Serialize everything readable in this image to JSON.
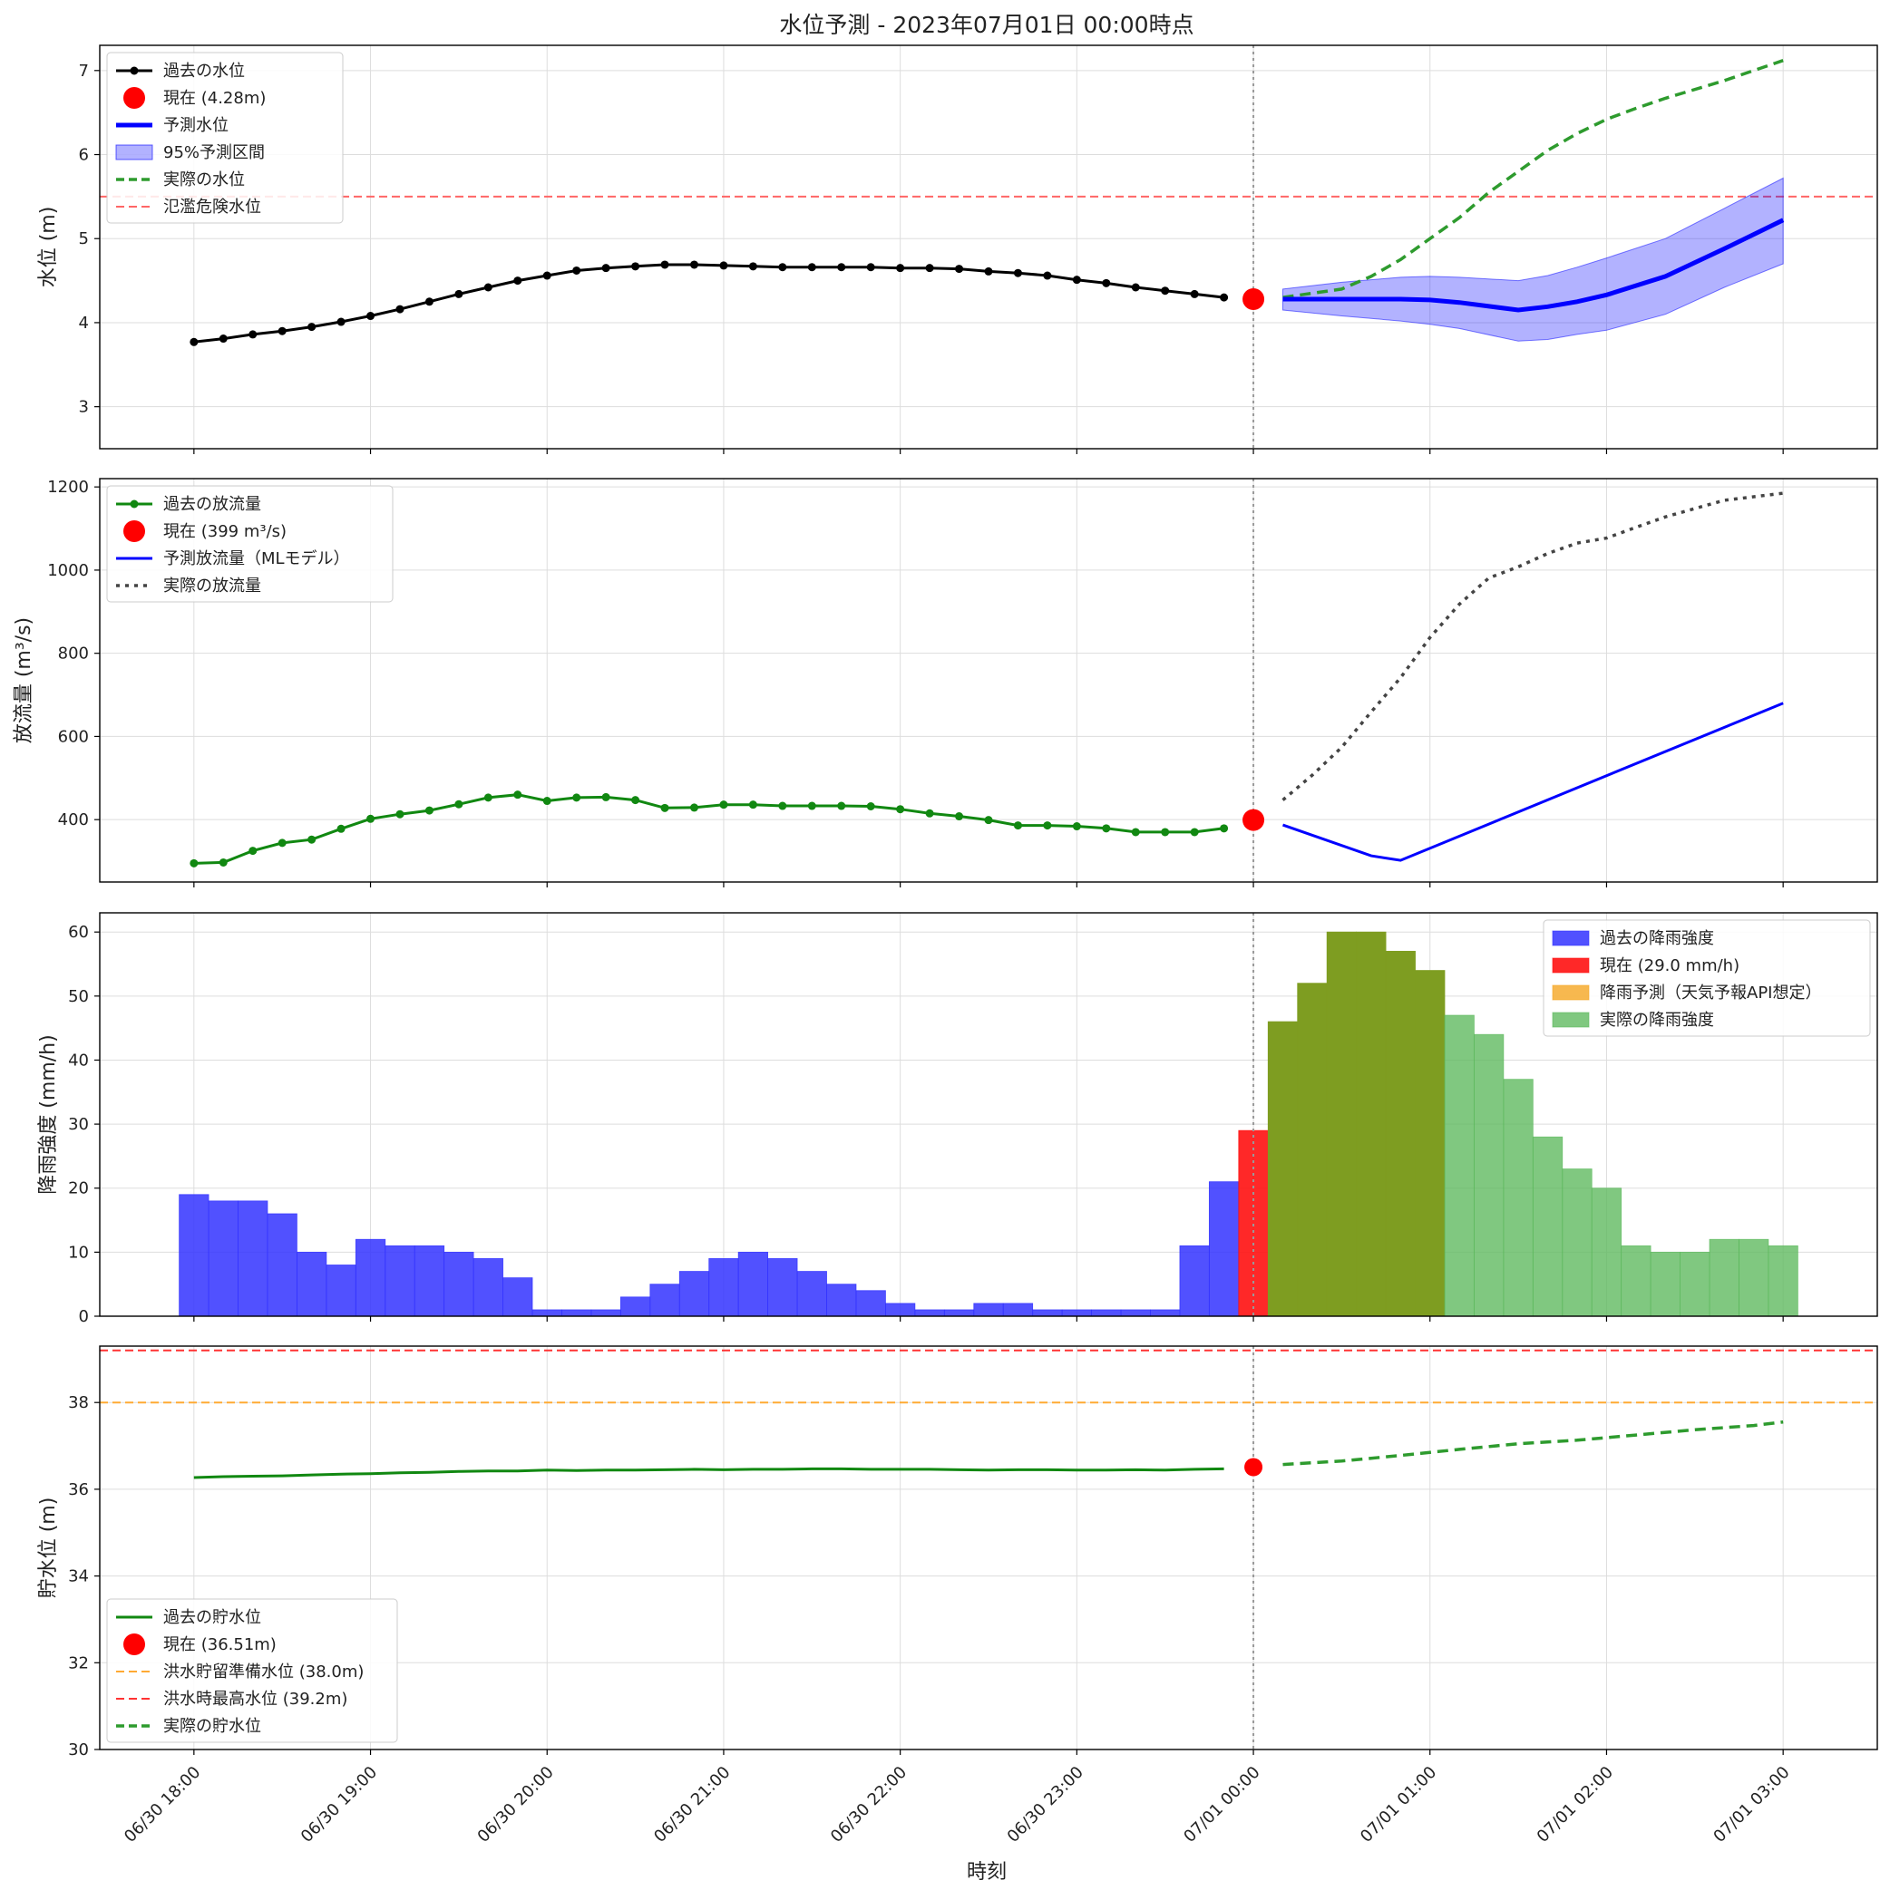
{
  "figure": {
    "title": "水位予測 - 2023年07月01日 00:00時点",
    "xlabel": "時刻"
  },
  "colors": {
    "past_level": "#000000",
    "current": "#ff0000",
    "predicted": "#0000ff",
    "band": "#0000ff",
    "actual_level": "#2e9b2e",
    "flood_danger": "#ff6666",
    "past_discharge": "#118811",
    "actual_discharge": "#444444",
    "past_rain": "#3333ff",
    "current_rain": "#ff1111",
    "forecast_rain": "#f5a623",
    "actual_rain": "#5cb85c",
    "overlap_rain": "#7e9d21",
    "storage_prep": "#ffaa33",
    "storage_max": "#ff3333",
    "grid": "#dddddd"
  },
  "chart_data": [
    {
      "type": "line",
      "panel": "water_level",
      "ylabel": "水位 (m)",
      "ylim": [
        2.5,
        7.3
      ],
      "yticks": [
        "3",
        "4",
        "5",
        "6",
        "7"
      ],
      "ytick_values": [
        3,
        4,
        5,
        6,
        7
      ],
      "grid": true,
      "legend_position": "upper-left",
      "legend": [
        "過去の水位",
        "現在 (4.28m)",
        "予測水位",
        "95%予測区間",
        "実際の水位",
        "氾濫危険水位"
      ],
      "hline": 5.5,
      "past": {
        "name": "過去の水位",
        "x_start": "2023-06-30 18:00",
        "step_minutes": 10,
        "values": [
          3.77,
          3.81,
          3.86,
          3.9,
          3.95,
          4.01,
          4.08,
          4.16,
          4.25,
          4.34,
          4.42,
          4.5,
          4.56,
          4.62,
          4.65,
          4.67,
          4.69,
          4.69,
          4.68,
          4.67,
          4.66,
          4.66,
          4.66,
          4.66,
          4.65,
          4.65,
          4.64,
          4.61,
          4.59,
          4.56,
          4.51,
          4.47,
          4.42,
          4.38,
          4.34,
          4.3
        ]
      },
      "current": {
        "x": "07/01 00:00",
        "value": 4.28
      },
      "predicted": {
        "name": "予測水位",
        "x": [
          "00:10",
          "00:30",
          "00:50",
          "01:00",
          "01:10",
          "01:30",
          "01:40",
          "01:50",
          "02:00",
          "02:20",
          "02:40",
          "03:00"
        ],
        "values": [
          4.28,
          4.28,
          4.28,
          4.27,
          4.24,
          4.15,
          4.19,
          4.25,
          4.33,
          4.55,
          4.88,
          5.22
        ],
        "upper": [
          4.4,
          4.48,
          4.54,
          4.55,
          4.54,
          4.5,
          4.56,
          4.66,
          4.77,
          5.0,
          5.36,
          5.72
        ],
        "lower": [
          4.15,
          4.08,
          4.02,
          3.98,
          3.93,
          3.78,
          3.8,
          3.86,
          3.91,
          4.1,
          4.42,
          4.7
        ]
      },
      "actual": {
        "name": "実際の水位",
        "x": [
          "00:10",
          "00:30",
          "00:40",
          "00:50",
          "01:00",
          "01:10",
          "01:20",
          "01:30",
          "01:40",
          "01:50",
          "02:00",
          "02:10",
          "02:20",
          "02:40",
          "03:00"
        ],
        "values": [
          4.3,
          4.4,
          4.55,
          4.75,
          5.0,
          5.25,
          5.55,
          5.8,
          6.05,
          6.25,
          6.42,
          6.55,
          6.67,
          6.88,
          7.12
        ]
      }
    },
    {
      "type": "line",
      "panel": "discharge",
      "ylabel": "放流量 (m³/s)",
      "ylim": [
        250,
        1220
      ],
      "yticks": [
        "400",
        "600",
        "800",
        "1000",
        "1200"
      ],
      "ytick_values": [
        400,
        600,
        800,
        1000,
        1200
      ],
      "grid": true,
      "legend_position": "upper-left",
      "legend": [
        "過去の放流量",
        "現在 (399 m³/s)",
        "予測放流量（MLモデル）",
        "実際の放流量"
      ],
      "past": {
        "name": "過去の放流量",
        "x_start": "2023-06-30 18:00",
        "step_minutes": 10,
        "values": [
          295,
          297,
          325,
          344,
          352,
          378,
          402,
          413,
          422,
          437,
          453,
          460,
          445,
          453,
          454,
          447,
          428,
          429,
          436,
          436,
          433,
          433,
          433,
          432,
          425,
          415,
          408,
          399,
          386,
          386,
          384,
          379,
          370,
          370,
          370,
          379
        ]
      },
      "current": {
        "x": "07/01 00:00",
        "value": 399
      },
      "predicted": {
        "name": "予測放流量（MLモデル）",
        "x": [
          "00:10",
          "00:40",
          "00:50",
          "03:00"
        ],
        "values": [
          387,
          313,
          302,
          680
        ]
      },
      "actual": {
        "name": "実際の放流量",
        "x": [
          "00:10",
          "00:20",
          "00:30",
          "00:40",
          "00:50",
          "01:00",
          "01:10",
          "01:20",
          "01:30",
          "01:40",
          "01:50",
          "02:00",
          "02:10",
          "02:20",
          "02:30",
          "02:40",
          "03:00"
        ],
        "values": [
          447,
          507,
          574,
          659,
          741,
          838,
          918,
          981,
          1008,
          1040,
          1065,
          1077,
          1103,
          1128,
          1148,
          1168,
          1185
        ]
      }
    },
    {
      "type": "bar",
      "panel": "rainfall",
      "ylabel": "降雨強度 (mm/h)",
      "ylim": [
        0,
        63
      ],
      "yticks": [
        "0",
        "10",
        "20",
        "30",
        "40",
        "50",
        "60"
      ],
      "ytick_values": [
        0,
        10,
        20,
        30,
        40,
        50,
        60
      ],
      "grid": true,
      "legend_position": "upper-right",
      "legend": [
        "過去の降雨強度",
        "現在 (29.0 mm/h)",
        "降雨予測（天気予報API想定）",
        "実際の降雨強度"
      ],
      "past": {
        "name": "過去の降雨強度",
        "x_start": "2023-06-30 18:00",
        "step_minutes": 10,
        "values": [
          19,
          18,
          18,
          16,
          10,
          8,
          12,
          11,
          11,
          10,
          9,
          6,
          1,
          1,
          1,
          3,
          5,
          7,
          9,
          10,
          9,
          7,
          5,
          4,
          2,
          1,
          1,
          2,
          2,
          1,
          1,
          1,
          1,
          1,
          11,
          21
        ]
      },
      "current": {
        "x": "07/01 00:00",
        "value": 29
      },
      "forecast": {
        "name": "降雨予測（天気予報API想定）",
        "x": [
          "00:10",
          "00:20",
          "00:30",
          "00:40",
          "00:50",
          "01:00"
        ],
        "values": [
          46,
          52,
          60,
          60,
          57,
          54
        ]
      },
      "actual": {
        "name": "実際の降雨強度",
        "x": [
          "00:10",
          "00:20",
          "00:30",
          "00:40",
          "00:50",
          "01:00",
          "01:10",
          "01:20",
          "01:30",
          "01:40",
          "01:50",
          "02:00",
          "02:10",
          "02:20",
          "02:30",
          "02:40",
          "02:50",
          "03:00"
        ],
        "values": [
          46,
          52,
          60,
          60,
          57,
          54,
          47,
          44,
          37,
          28,
          23,
          20,
          11,
          10,
          10,
          12,
          12,
          11
        ]
      }
    },
    {
      "type": "line",
      "panel": "storage",
      "ylabel": "貯水位 (m)",
      "ylim": [
        30,
        39.3
      ],
      "yticks": [
        "30",
        "32",
        "34",
        "36",
        "38"
      ],
      "ytick_values": [
        30,
        32,
        34,
        36,
        38
      ],
      "grid": true,
      "legend_position": "lower-left",
      "legend": [
        "過去の貯水位",
        "現在 (36.51m)",
        "洪水貯留準備水位 (38.0m)",
        "洪水時最高水位 (39.2m)",
        "実際の貯水位"
      ],
      "hlines": [
        38.0,
        39.2
      ],
      "past": {
        "name": "過去の貯水位",
        "x_start": "2023-06-30 18:00",
        "step_minutes": 10,
        "values": [
          36.27,
          36.29,
          36.3,
          36.31,
          36.33,
          36.35,
          36.36,
          36.38,
          36.39,
          36.41,
          36.42,
          36.42,
          36.44,
          36.43,
          36.44,
          36.44,
          36.45,
          36.46,
          36.45,
          36.46,
          36.46,
          36.47,
          36.47,
          36.46,
          36.46,
          36.46,
          36.45,
          36.44,
          36.45,
          36.45,
          36.44,
          36.44,
          36.45,
          36.44,
          36.46,
          36.47
        ]
      },
      "current": {
        "x": "07/01 00:00",
        "value": 36.51
      },
      "actual": {
        "name": "実際の貯水位",
        "x": [
          "00:10",
          "00:30",
          "00:50",
          "01:10",
          "01:30",
          "01:50",
          "02:10",
          "02:30",
          "02:50",
          "03:00"
        ],
        "values": [
          36.57,
          36.65,
          36.78,
          36.92,
          37.05,
          37.13,
          37.25,
          37.37,
          37.47,
          37.55
        ]
      }
    }
  ],
  "x_axis": {
    "ticks": [
      "06/30 18:00",
      "06/30 19:00",
      "06/30 20:00",
      "06/30 21:00",
      "06/30 22:00",
      "06/30 23:00",
      "07/01 00:00",
      "07/01 01:00",
      "07/01 02:00",
      "07/01 03:00"
    ],
    "current_marker": "07/01 00:00",
    "range": [
      "06/30 17:28",
      "07/01 03:32"
    ]
  }
}
